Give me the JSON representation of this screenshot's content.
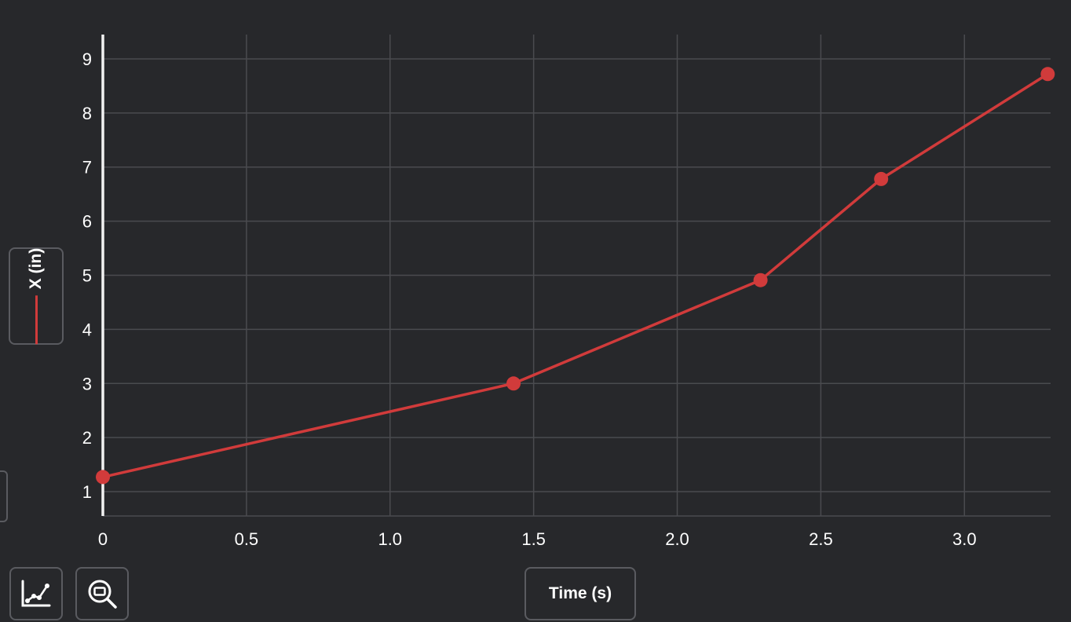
{
  "chart_data": {
    "type": "line",
    "xlabel": "Time (s)",
    "ylabel": "X (in)",
    "xlim": [
      0,
      3.3
    ],
    "ylim": [
      0.55,
      9.45
    ],
    "x_ticks": [
      {
        "value": 0,
        "label": "0"
      },
      {
        "value": 0.5,
        "label": "0.5"
      },
      {
        "value": 1.0,
        "label": "1.0"
      },
      {
        "value": 1.5,
        "label": "1.5"
      },
      {
        "value": 2.0,
        "label": "2.0"
      },
      {
        "value": 2.5,
        "label": "2.5"
      },
      {
        "value": 3.0,
        "label": "3.0"
      }
    ],
    "y_ticks": [
      {
        "value": 1,
        "label": "1"
      },
      {
        "value": 2,
        "label": "2"
      },
      {
        "value": 3,
        "label": "3"
      },
      {
        "value": 4,
        "label": "4"
      },
      {
        "value": 5,
        "label": "5"
      },
      {
        "value": 6,
        "label": "6"
      },
      {
        "value": 7,
        "label": "7"
      },
      {
        "value": 8,
        "label": "8"
      },
      {
        "value": 9,
        "label": "9"
      }
    ],
    "grid": true,
    "series": [
      {
        "color": "#d13b3b",
        "points": [
          {
            "x": 0.0,
            "y": 1.27
          },
          {
            "x": 1.43,
            "y": 3.0
          },
          {
            "x": 2.29,
            "y": 4.91
          },
          {
            "x": 2.71,
            "y": 6.78
          },
          {
            "x": 3.29,
            "y": 8.72
          }
        ]
      }
    ]
  },
  "controls": {
    "chart_type_icon": "line-chart-icon",
    "zoom_icon": "zoom-fit-icon"
  }
}
